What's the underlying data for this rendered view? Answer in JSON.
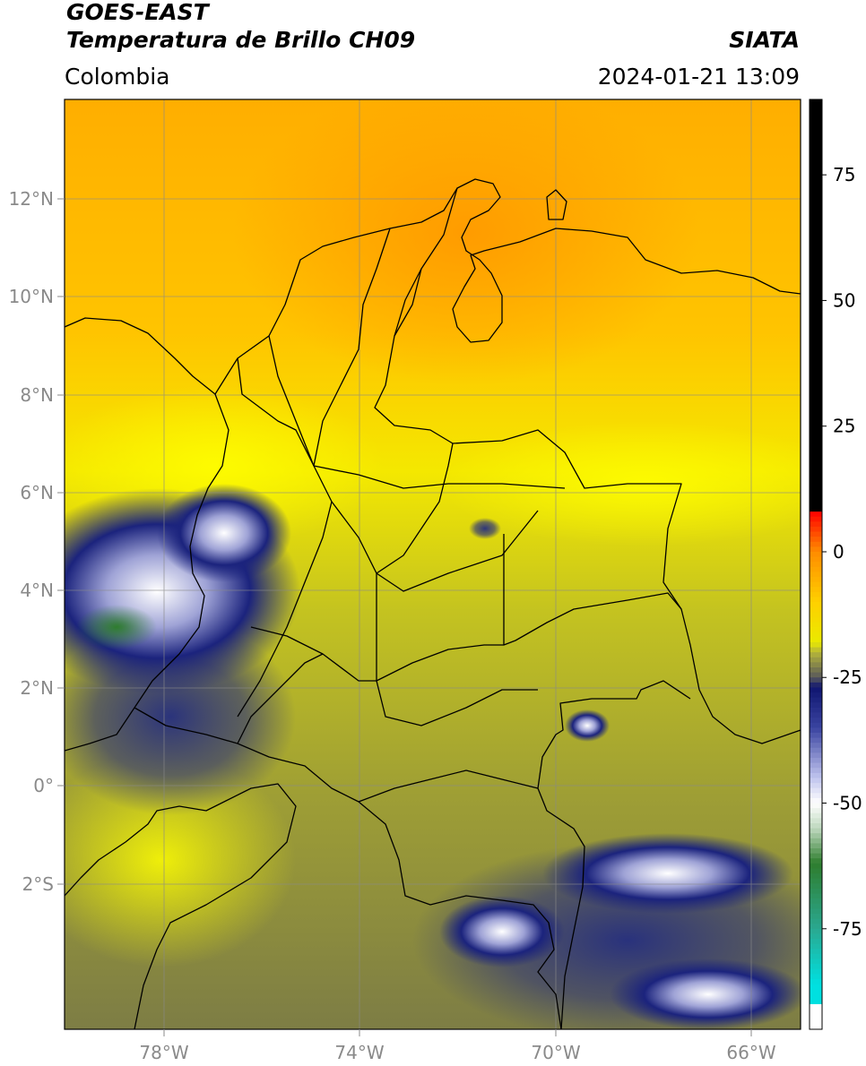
{
  "header": {
    "satellite": "GOES-EAST",
    "product": "Temperatura de Brillo CH09",
    "region": "Colombia",
    "source": "SIATA",
    "datetime": "2024-01-21 13:09"
  },
  "map": {
    "lon_ticks": [
      "78°W",
      "74°W",
      "70°W",
      "66°W"
    ],
    "lat_ticks": [
      "12°N",
      "10°N",
      "8°N",
      "6°N",
      "4°N",
      "2°N",
      "0°",
      "2°S"
    ],
    "colors": {
      "warm": "#ffa800",
      "mid": "#e9ea00",
      "cold": "#1b237d",
      "coldest": "#f2f2ff",
      "border": "#000000",
      "grid": "#888888"
    }
  },
  "colorbar": {
    "ticks": [
      "75",
      "50",
      "25",
      "0",
      "-25",
      "-50",
      "-75"
    ],
    "tick_values": [
      75,
      50,
      25,
      0,
      -25,
      -50,
      -75
    ],
    "range": [
      -95,
      90
    ]
  }
}
